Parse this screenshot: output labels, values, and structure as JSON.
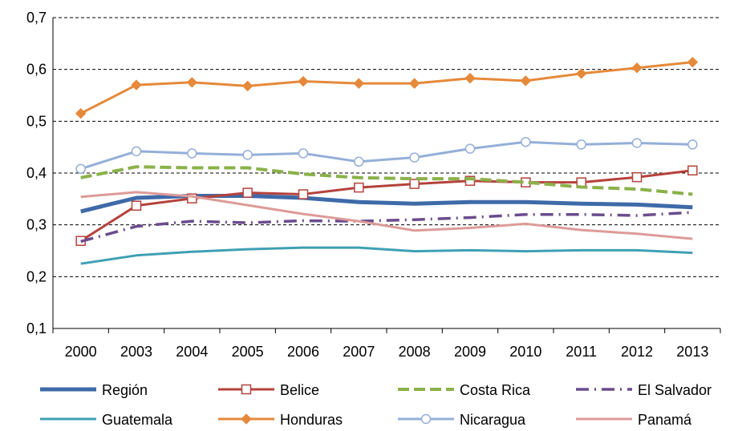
{
  "chart_data": {
    "type": "line",
    "title": "",
    "xlabel": "",
    "ylabel": "",
    "categories": [
      "2000",
      "2003",
      "2004",
      "2005",
      "2006",
      "2007",
      "2008",
      "2009",
      "2010",
      "2011",
      "2012",
      "2013"
    ],
    "ylim": [
      0.1,
      0.7
    ],
    "y_ticks": [
      0.1,
      0.2,
      0.3,
      0.4,
      0.5,
      0.6,
      0.7
    ],
    "y_tick_labels": [
      "0,1",
      "0,2",
      "0,3",
      "0,4",
      "0,5",
      "0,6",
      "0,7"
    ],
    "grid": true,
    "legend_position": "bottom",
    "series": [
      {
        "name": "Región",
        "color": "#3e6aa8",
        "style": "solid-thick",
        "marker": "none",
        "values": [
          0.326,
          0.352,
          0.356,
          0.356,
          0.352,
          0.344,
          0.341,
          0.344,
          0.344,
          0.341,
          0.339,
          0.334
        ]
      },
      {
        "name": "Belice",
        "color": "#b5423c",
        "style": "solid",
        "marker": "square-open",
        "values": [
          0.269,
          0.337,
          0.351,
          0.362,
          0.359,
          0.372,
          0.379,
          0.385,
          0.382,
          0.382,
          0.392,
          0.405
        ]
      },
      {
        "name": "Costa Rica",
        "color": "#8bb14a",
        "style": "dashed",
        "marker": "none",
        "values": [
          0.391,
          0.412,
          0.41,
          0.41,
          0.398,
          0.391,
          0.389,
          0.389,
          0.382,
          0.373,
          0.369,
          0.359
        ]
      },
      {
        "name": "El Salvador",
        "color": "#6b4c8e",
        "style": "dash-dot",
        "marker": "none",
        "values": [
          0.268,
          0.297,
          0.307,
          0.304,
          0.308,
          0.307,
          0.31,
          0.314,
          0.32,
          0.32,
          0.318,
          0.324
        ]
      },
      {
        "name": "Guatemala",
        "color": "#3fa0b4",
        "style": "solid",
        "marker": "none",
        "values": [
          0.225,
          0.241,
          0.248,
          0.253,
          0.256,
          0.256,
          0.249,
          0.251,
          0.249,
          0.251,
          0.251,
          0.246
        ]
      },
      {
        "name": "Honduras",
        "color": "#e5893a",
        "style": "solid",
        "marker": "diamond",
        "values": [
          0.515,
          0.57,
          0.575,
          0.568,
          0.577,
          0.573,
          0.573,
          0.583,
          0.578,
          0.592,
          0.603,
          0.614
        ]
      },
      {
        "name": "Nicaragua",
        "color": "#94afd8",
        "style": "solid",
        "marker": "circle-open",
        "values": [
          0.408,
          0.442,
          0.438,
          0.435,
          0.438,
          0.422,
          0.43,
          0.447,
          0.46,
          0.455,
          0.458,
          0.455
        ]
      },
      {
        "name": "Panamá",
        "color": "#dd9b98",
        "style": "solid",
        "marker": "none",
        "values": [
          0.354,
          0.363,
          0.355,
          0.338,
          0.321,
          0.307,
          0.289,
          0.294,
          0.302,
          0.29,
          0.283,
          0.273
        ]
      }
    ]
  }
}
